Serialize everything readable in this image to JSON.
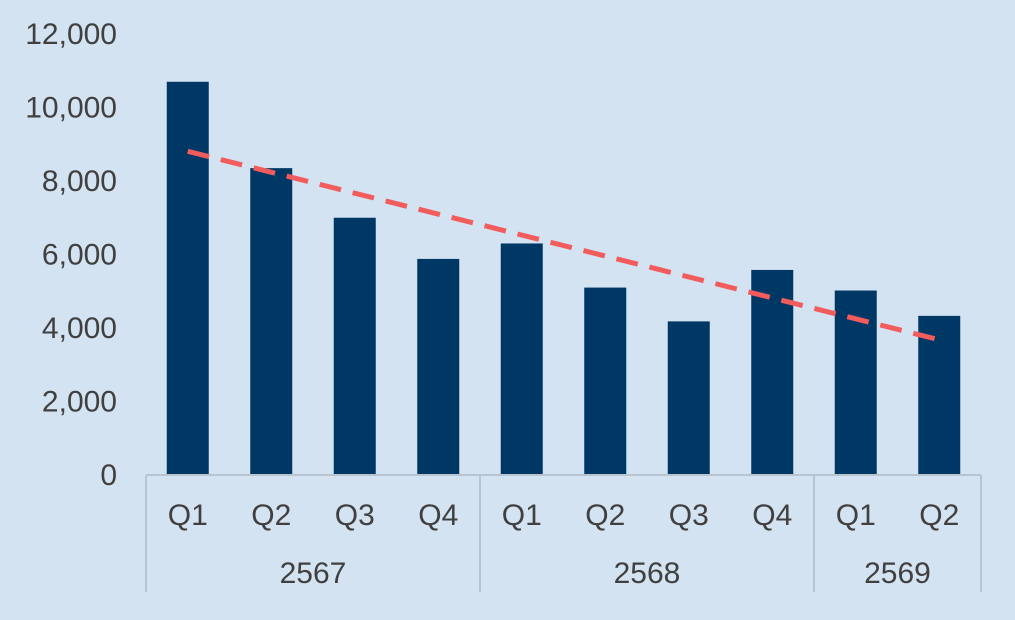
{
  "colors": {
    "background": "#d3e3f2",
    "bar": "#003865",
    "trendline": "#f25c5c",
    "axis_line": "#b8c4cf",
    "text": "#404040"
  },
  "chart_data": {
    "type": "bar",
    "title": "",
    "xlabel": "",
    "ylabel": "",
    "ylim": [
      0,
      12000
    ],
    "yticks": [
      "0",
      "2,000",
      "4,000",
      "6,000",
      "8,000",
      "10,000",
      "12,000"
    ],
    "grid": false,
    "legend": "none",
    "groups": [
      {
        "label": "2567",
        "categories": [
          "Q1",
          "Q2",
          "Q3",
          "Q4"
        ]
      },
      {
        "label": "2568",
        "categories": [
          "Q1",
          "Q2",
          "Q3",
          "Q4"
        ]
      },
      {
        "label": "2569",
        "categories": [
          "Q1",
          "Q2"
        ]
      }
    ],
    "series": [
      {
        "values": [
          10700,
          8350,
          7000,
          5880,
          6300,
          5100,
          4180,
          5580,
          5020,
          4330
        ]
      }
    ],
    "trendline": {
      "style": "dashed",
      "kind": "linear"
    }
  }
}
